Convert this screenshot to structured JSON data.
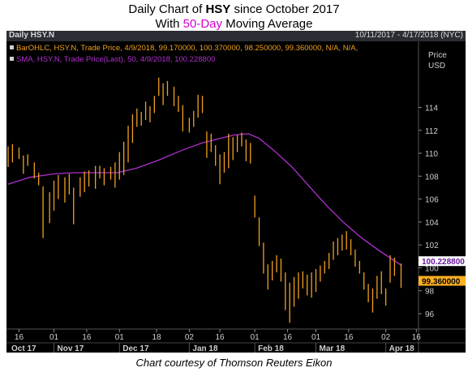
{
  "title": {
    "line1_pre": "Daily Chart of ",
    "line1_bold": "HSY",
    "line1_post": " since October 2017",
    "line2_pre": "With ",
    "line2_accent": "50-Day",
    "line2_post": " Moving Average"
  },
  "header": {
    "symbol": "Daily HSY.N",
    "date_range": "10/11/2017 - 4/17/2018 (NYC)"
  },
  "legend": {
    "ohlc": "BarOHLC, HSY.N, Trade Price, 4/9/2018, 99.170000, 100.370000, 98.250000, 99.360000, N/A, N/A,",
    "sma": "SMA, HSY.N, Trade Price(Last),  50, 4/9/2018, 100.228800"
  },
  "axis_title": [
    "Price",
    "USD"
  ],
  "credit": "Chart courtesy of Thomson Reuters Eikon",
  "colors": {
    "bars": "#f0a020",
    "sma": "#b030d0",
    "background": "#000000",
    "axis_text": "#cfcfcf",
    "sma_tag": "#ffffff",
    "last_tag": "#ffb020"
  },
  "chart_data": {
    "type": "ohlc",
    "ylim": [
      94.8,
      117.5
    ],
    "yticks": [
      96,
      98,
      100,
      102,
      104,
      106,
      108,
      110,
      112,
      114
    ],
    "x_range": [
      "2017-10-11",
      "2018-04-17"
    ],
    "xticks_day": [
      {
        "date": "2017-10-16",
        "label": "16"
      },
      {
        "date": "2017-11-01",
        "label": "01"
      },
      {
        "date": "2017-11-16",
        "label": "16"
      },
      {
        "date": "2017-12-01",
        "label": "01"
      },
      {
        "date": "2017-12-18",
        "label": "18"
      },
      {
        "date": "2018-01-02",
        "label": "02"
      },
      {
        "date": "2018-01-16",
        "label": "16"
      },
      {
        "date": "2018-02-01",
        "label": "01"
      },
      {
        "date": "2018-02-16",
        "label": "16"
      },
      {
        "date": "2018-03-01",
        "label": "01"
      },
      {
        "date": "2018-03-16",
        "label": "16"
      },
      {
        "date": "2018-04-02",
        "label": "02"
      },
      {
        "date": "2018-04-16",
        "label": "16"
      }
    ],
    "xticks_month": [
      {
        "date": "2017-10-11",
        "label": "Oct 17"
      },
      {
        "date": "2017-11-01",
        "label": "Nov 17"
      },
      {
        "date": "2017-12-01",
        "label": "Dec 17"
      },
      {
        "date": "2018-01-02",
        "label": "Jan 18"
      },
      {
        "date": "2018-02-01",
        "label": "Feb 18"
      },
      {
        "date": "2018-03-01",
        "label": "Mar 18"
      },
      {
        "date": "2018-04-02",
        "label": "Apr 18"
      }
    ],
    "last_values": {
      "sma": "100.228800",
      "close": "99.360000"
    },
    "ohlc_bars": [
      {
        "date": "2017-10-11",
        "low": 108.8,
        "high": 110.6
      },
      {
        "date": "2017-10-13",
        "low": 109.2,
        "high": 110.8
      },
      {
        "date": "2017-10-16",
        "low": 109.5,
        "high": 110.5
      },
      {
        "date": "2017-10-18",
        "low": 108.2,
        "high": 109.8
      },
      {
        "date": "2017-10-20",
        "low": 108.9,
        "high": 109.9
      },
      {
        "date": "2017-10-23",
        "low": 107.8,
        "high": 109.2
      },
      {
        "date": "2017-10-25",
        "low": 107.2,
        "high": 108.3
      },
      {
        "date": "2017-10-27",
        "low": 102.6,
        "high": 107.1
      },
      {
        "date": "2017-10-30",
        "low": 103.9,
        "high": 106.6
      },
      {
        "date": "2017-11-01",
        "low": 105.0,
        "high": 107.6
      },
      {
        "date": "2017-11-03",
        "low": 106.0,
        "high": 108.1
      },
      {
        "date": "2017-11-06",
        "low": 105.7,
        "high": 107.9
      },
      {
        "date": "2017-11-08",
        "low": 106.4,
        "high": 108.2
      },
      {
        "date": "2017-11-10",
        "low": 103.8,
        "high": 107.0
      },
      {
        "date": "2017-11-13",
        "low": 106.2,
        "high": 107.9
      },
      {
        "date": "2017-11-15",
        "low": 106.6,
        "high": 108.4
      },
      {
        "date": "2017-11-17",
        "low": 107.1,
        "high": 108.5
      },
      {
        "date": "2017-11-20",
        "low": 106.9,
        "high": 108.9
      },
      {
        "date": "2017-11-22",
        "low": 107.8,
        "high": 108.9
      },
      {
        "date": "2017-11-24",
        "low": 107.2,
        "high": 108.7
      },
      {
        "date": "2017-11-27",
        "low": 107.7,
        "high": 108.8
      },
      {
        "date": "2017-11-29",
        "low": 107.0,
        "high": 109.2
      },
      {
        "date": "2017-12-01",
        "low": 107.7,
        "high": 110.1
      },
      {
        "date": "2017-12-03",
        "low": 108.1,
        "high": 111.0
      },
      {
        "date": "2017-12-05",
        "low": 109.2,
        "high": 112.4
      },
      {
        "date": "2017-12-07",
        "low": 110.9,
        "high": 113.4
      },
      {
        "date": "2017-12-09",
        "low": 112.3,
        "high": 113.9
      },
      {
        "date": "2017-12-11",
        "low": 112.4,
        "high": 113.6
      },
      {
        "date": "2017-12-13",
        "low": 112.9,
        "high": 114.5
      },
      {
        "date": "2017-12-15",
        "low": 112.7,
        "high": 114.1
      },
      {
        "date": "2017-12-17",
        "low": 113.5,
        "high": 115.0
      },
      {
        "date": "2017-12-19",
        "low": 115.0,
        "high": 116.6
      },
      {
        "date": "2017-12-21",
        "low": 114.2,
        "high": 116.1
      },
      {
        "date": "2017-12-23",
        "low": 115.0,
        "high": 116.3
      },
      {
        "date": "2017-12-26",
        "low": 114.1,
        "high": 115.8
      },
      {
        "date": "2017-12-28",
        "low": 113.6,
        "high": 115.0
      },
      {
        "date": "2017-12-30",
        "low": 111.9,
        "high": 114.2
      },
      {
        "date": "2018-01-02",
        "low": 111.8,
        "high": 113.1
      },
      {
        "date": "2018-01-04",
        "low": 112.3,
        "high": 113.7
      },
      {
        "date": "2018-01-06",
        "low": 113.1,
        "high": 115.1
      },
      {
        "date": "2018-01-08",
        "low": 113.5,
        "high": 115.0
      },
      {
        "date": "2018-01-10",
        "low": 109.6,
        "high": 111.9
      },
      {
        "date": "2018-01-12",
        "low": 110.1,
        "high": 111.7
      },
      {
        "date": "2018-01-14",
        "low": 108.9,
        "high": 110.7
      },
      {
        "date": "2018-01-16",
        "low": 107.3,
        "high": 109.9
      },
      {
        "date": "2018-01-18",
        "low": 108.3,
        "high": 110.1
      },
      {
        "date": "2018-01-20",
        "low": 108.7,
        "high": 111.7
      },
      {
        "date": "2018-01-22",
        "low": 109.4,
        "high": 111.4
      },
      {
        "date": "2018-01-24",
        "low": 110.1,
        "high": 111.6
      },
      {
        "date": "2018-01-26",
        "low": 110.6,
        "high": 111.8
      },
      {
        "date": "2018-01-28",
        "low": 109.3,
        "high": 111.2
      },
      {
        "date": "2018-01-30",
        "low": 109.1,
        "high": 110.9
      },
      {
        "date": "2018-02-01",
        "low": 104.4,
        "high": 106.3
      },
      {
        "date": "2018-02-03",
        "low": 101.9,
        "high": 104.4
      },
      {
        "date": "2018-02-05",
        "low": 99.5,
        "high": 102.2
      },
      {
        "date": "2018-02-07",
        "low": 98.1,
        "high": 100.3
      },
      {
        "date": "2018-02-09",
        "low": 98.9,
        "high": 100.6
      },
      {
        "date": "2018-02-11",
        "low": 99.6,
        "high": 101.1
      },
      {
        "date": "2018-02-13",
        "low": 98.8,
        "high": 100.8
      },
      {
        "date": "2018-02-15",
        "low": 96.3,
        "high": 99.6
      },
      {
        "date": "2018-02-17",
        "low": 95.2,
        "high": 98.7
      },
      {
        "date": "2018-02-19",
        "low": 96.6,
        "high": 99.2
      },
      {
        "date": "2018-02-21",
        "low": 97.3,
        "high": 99.6
      },
      {
        "date": "2018-02-23",
        "low": 98.2,
        "high": 99.7
      },
      {
        "date": "2018-02-25",
        "low": 97.6,
        "high": 99.4
      },
      {
        "date": "2018-02-27",
        "low": 97.4,
        "high": 99.6
      },
      {
        "date": "2018-03-01",
        "low": 97.9,
        "high": 99.9
      },
      {
        "date": "2018-03-03",
        "low": 98.8,
        "high": 100.2
      },
      {
        "date": "2018-03-05",
        "low": 99.5,
        "high": 100.6
      },
      {
        "date": "2018-03-07",
        "low": 99.9,
        "high": 101.3
      },
      {
        "date": "2018-03-09",
        "low": 100.7,
        "high": 102.3
      },
      {
        "date": "2018-03-11",
        "low": 101.1,
        "high": 102.6
      },
      {
        "date": "2018-03-13",
        "low": 101.5,
        "high": 102.9
      },
      {
        "date": "2018-03-15",
        "low": 101.6,
        "high": 103.2
      },
      {
        "date": "2018-03-17",
        "low": 101.1,
        "high": 102.5
      },
      {
        "date": "2018-03-19",
        "low": 100.1,
        "high": 101.6
      },
      {
        "date": "2018-03-21",
        "low": 99.5,
        "high": 100.6
      },
      {
        "date": "2018-03-23",
        "low": 98.1,
        "high": 99.6
      },
      {
        "date": "2018-03-25",
        "low": 97.0,
        "high": 98.6
      },
      {
        "date": "2018-03-27",
        "low": 96.1,
        "high": 98.2
      },
      {
        "date": "2018-03-29",
        "low": 97.3,
        "high": 99.3
      },
      {
        "date": "2018-03-31",
        "low": 97.7,
        "high": 99.7
      },
      {
        "date": "2018-04-02",
        "low": 96.7,
        "high": 98.2
      },
      {
        "date": "2018-04-04",
        "low": 98.7,
        "high": 101.1
      },
      {
        "date": "2018-04-06",
        "low": 99.3,
        "high": 100.9
      },
      {
        "date": "2018-04-09",
        "low": 98.25,
        "high": 100.37
      }
    ],
    "sma_series": [
      {
        "date": "2017-10-11",
        "value": 107.3
      },
      {
        "date": "2017-10-21",
        "value": 107.9
      },
      {
        "date": "2017-11-01",
        "value": 108.2
      },
      {
        "date": "2017-11-10",
        "value": 108.3
      },
      {
        "date": "2017-11-20",
        "value": 108.3
      },
      {
        "date": "2017-11-30",
        "value": 108.3
      },
      {
        "date": "2017-12-09",
        "value": 108.7
      },
      {
        "date": "2017-12-19",
        "value": 109.4
      },
      {
        "date": "2017-12-29",
        "value": 110.2
      },
      {
        "date": "2018-01-08",
        "value": 110.9
      },
      {
        "date": "2018-01-16",
        "value": 111.3
      },
      {
        "date": "2018-01-23",
        "value": 111.6
      },
      {
        "date": "2018-01-29",
        "value": 111.7
      },
      {
        "date": "2018-02-03",
        "value": 111.3
      },
      {
        "date": "2018-02-10",
        "value": 110.2
      },
      {
        "date": "2018-02-18",
        "value": 108.8
      },
      {
        "date": "2018-02-26",
        "value": 107.1
      },
      {
        "date": "2018-03-06",
        "value": 105.4
      },
      {
        "date": "2018-03-14",
        "value": 103.9
      },
      {
        "date": "2018-03-22",
        "value": 102.6
      },
      {
        "date": "2018-03-30",
        "value": 101.5
      },
      {
        "date": "2018-04-09",
        "value": 100.2288
      }
    ]
  }
}
